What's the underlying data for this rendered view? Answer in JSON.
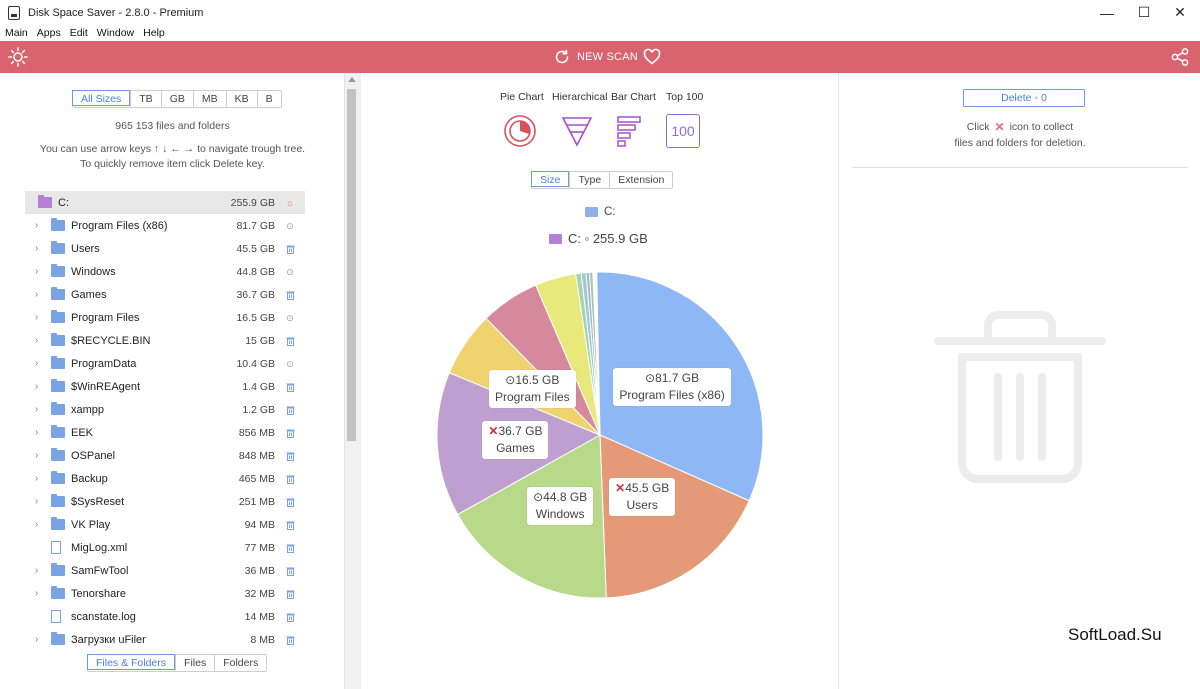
{
  "window": {
    "title": "Disk Space Saver - 2.8.0 - Premium",
    "controls": {
      "minimize": "—",
      "maximize": "☐",
      "close": "✕"
    }
  },
  "menu": [
    "Main",
    "Apps",
    "Edit",
    "Window",
    "Help"
  ],
  "toolbar": {
    "new_scan_label": "NEW SCAN"
  },
  "left": {
    "size_filter": [
      "All Sizes",
      "TB",
      "GB",
      "MB",
      "KB",
      "B"
    ],
    "count_text": "965 153 files and folders",
    "hint_line1": "You can use arrow keys ↑ ↓ ← → to navigate trough tree.",
    "hint_line2": "To quickly remove item click Delete key.",
    "tree": [
      {
        "name": "C:",
        "size": "255.9 GB",
        "type": "root",
        "action": "home"
      },
      {
        "name": "Program Files (x86)",
        "size": "81.7 GB",
        "type": "folder",
        "action": "gear"
      },
      {
        "name": "Users",
        "size": "45.5 GB",
        "type": "folder",
        "action": "trash"
      },
      {
        "name": "Windows",
        "size": "44.8 GB",
        "type": "folder",
        "action": "gear"
      },
      {
        "name": "Games",
        "size": "36.7 GB",
        "type": "folder",
        "action": "trash"
      },
      {
        "name": "Program Files",
        "size": "16.5 GB",
        "type": "folder",
        "action": "gear"
      },
      {
        "name": "$RECYCLE.BIN",
        "size": "15 GB",
        "type": "folder",
        "action": "trash"
      },
      {
        "name": "ProgramData",
        "size": "10.4 GB",
        "type": "folder",
        "action": "gear"
      },
      {
        "name": "$WinREAgent",
        "size": "1.4 GB",
        "type": "folder",
        "action": "trash"
      },
      {
        "name": "xampp",
        "size": "1.2 GB",
        "type": "folder",
        "action": "trash"
      },
      {
        "name": "EEK",
        "size": "856 MB",
        "type": "folder",
        "action": "trash"
      },
      {
        "name": "OSPanel",
        "size": "848 MB",
        "type": "folder",
        "action": "trash"
      },
      {
        "name": "Backup",
        "size": "465 MB",
        "type": "folder",
        "action": "trash"
      },
      {
        "name": "$SysReset",
        "size": "251 MB",
        "type": "folder",
        "action": "trash"
      },
      {
        "name": "VK Play",
        "size": "94 MB",
        "type": "folder",
        "action": "trash"
      },
      {
        "name": "MigLog.xml",
        "size": "77 MB",
        "type": "file",
        "action": "trash"
      },
      {
        "name": "SamFwTool",
        "size": "36 MB",
        "type": "folder",
        "action": "trash"
      },
      {
        "name": "Tenorshare",
        "size": "32 MB",
        "type": "folder",
        "action": "trash"
      },
      {
        "name": "scanstate.log",
        "size": "14 MB",
        "type": "file",
        "action": "trash"
      },
      {
        "name": "Загрузки uFiler",
        "size": "8 MB",
        "type": "folder",
        "action": "trash"
      }
    ],
    "bottom_filter": [
      "Files & Folders",
      "Files",
      "Folders"
    ]
  },
  "center": {
    "chart_types": [
      "Pie Chart",
      "Hierarchical",
      "Bar Chart",
      "Top 100"
    ],
    "top100_icon_text": "100",
    "group_by": [
      "Size",
      "Type",
      "Extension"
    ],
    "crumb": "C:",
    "current": "C: ◦ 255.9 GB"
  },
  "chart_data": {
    "type": "pie",
    "title": "C: ◦ 255.9 GB",
    "unit": "GB",
    "slices": [
      {
        "name": "Program Files (x86)",
        "value": 81.7,
        "color": "#8eb8f5",
        "label": "⊙81.7 GB",
        "mark": "gear"
      },
      {
        "name": "Users",
        "value": 45.5,
        "color": "#e59a77",
        "label": "45.5 GB",
        "mark": "x"
      },
      {
        "name": "Windows",
        "value": 44.8,
        "color": "#b9d98a",
        "label": "⊙44.8 GB",
        "mark": "gear"
      },
      {
        "name": "Games",
        "value": 36.7,
        "color": "#bf9fd0",
        "label": "36.7 GB",
        "mark": "x"
      },
      {
        "name": "Program Files",
        "value": 16.5,
        "color": "#efd36e",
        "label": "⊙16.5 GB",
        "mark": "gear"
      },
      {
        "name": "$RECYCLE.BIN",
        "value": 15,
        "color": "#d6899c",
        "label": "",
        "mark": ""
      },
      {
        "name": "ProgramData",
        "value": 10.4,
        "color": "#e7ea7b",
        "label": "",
        "mark": ""
      },
      {
        "name": "$WinREAgent",
        "value": 1.4,
        "color": "#a6d6a8",
        "label": "",
        "mark": ""
      },
      {
        "name": "xampp",
        "value": 1.2,
        "color": "#9ec7d7",
        "label": "",
        "mark": ""
      },
      {
        "name": "EEK",
        "value": 0.86,
        "color": "#9fb8c8",
        "label": "",
        "mark": ""
      },
      {
        "name": "OSPanel",
        "value": 0.85,
        "color": "#a7c4b9",
        "label": "",
        "mark": ""
      }
    ]
  },
  "right": {
    "delete_button": "Delete ◦ 0",
    "hint_line1_a": "Click",
    "hint_line1_b": "icon to collect",
    "hint_line2": "files and folders for deletion."
  },
  "watermark": "SoftLoad.Su"
}
